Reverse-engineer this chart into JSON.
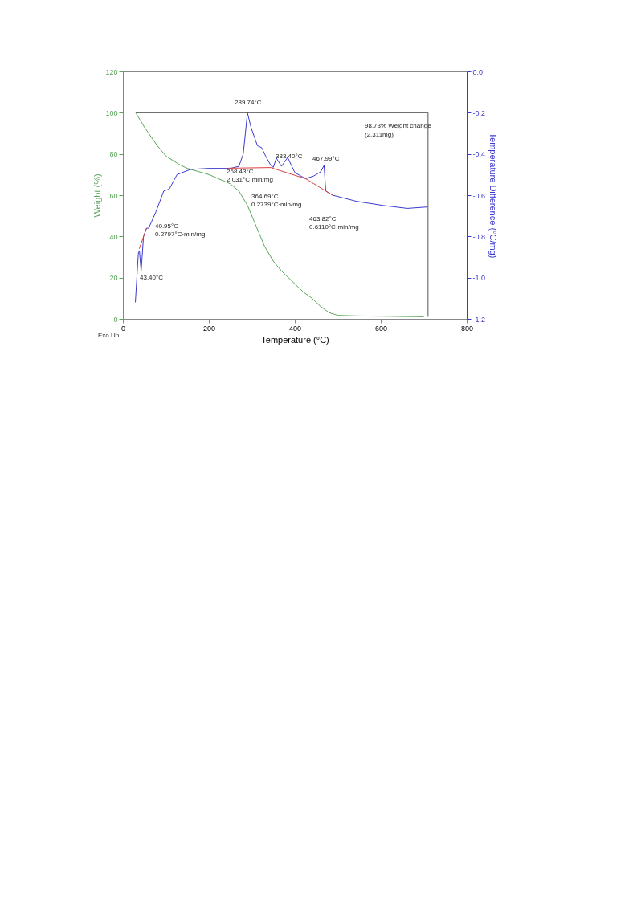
{
  "chart_data": {
    "type": "line",
    "xlabel": "Temperature (°C)",
    "ylabel": "Weight (%)",
    "y2label": "Temperature Difference (°C/mg)",
    "xlim": [
      0,
      800
    ],
    "xticks": [
      0,
      200,
      400,
      600,
      800
    ],
    "ylim": [
      0,
      120
    ],
    "yticks": [
      0,
      20,
      40,
      60,
      80,
      100,
      120
    ],
    "y2lim": [
      -1.2,
      0
    ],
    "y2ticks": [
      {
        "value": 0,
        "label": "0.0"
      },
      {
        "value": -0.2,
        "label": "-0.2"
      },
      {
        "value": -0.4,
        "label": "-0.4"
      },
      {
        "value": -0.6,
        "label": "-0.6"
      },
      {
        "value": -0.8,
        "label": "-0.8"
      },
      {
        "value": -1.0,
        "label": "-1.0"
      },
      {
        "value": -1.2,
        "label": "-1.2"
      }
    ],
    "grid": false,
    "legend": false,
    "series": [
      {
        "color": "#5aa55a",
        "x": [
          30,
          50,
          80,
          100,
          130,
          150,
          200,
          250,
          270,
          290,
          310,
          330,
          350,
          370,
          400,
          420,
          440,
          460,
          480,
          500,
          550,
          600,
          700
        ],
        "values": [
          100,
          93,
          84,
          79,
          75,
          73,
          70,
          65.5,
          62,
          55,
          45,
          35,
          28,
          23,
          17,
          13,
          10,
          6,
          3,
          1.7,
          1.4,
          1.3,
          1.0
        ]
      },
      {
        "axis": "y2",
        "color": "#3a3ad0",
        "x": [
          29,
          36,
          38.5,
          42.4,
          48,
          55,
          60,
          77,
          95,
          108,
          126,
          157,
          200,
          250,
          270,
          280,
          285,
          289.74,
          298,
          313,
          323,
          332,
          344,
          350,
          357,
          369,
          383.4,
          400,
          425,
          444,
          460,
          467.99,
          472,
          488,
          544,
          606,
          662,
          709
        ],
        "values": [
          -1.12,
          -0.88,
          -0.87,
          -0.97,
          -0.8,
          -0.76,
          -0.76,
          -0.68,
          -0.58,
          -0.57,
          -0.5,
          -0.475,
          -0.47,
          -0.47,
          -0.46,
          -0.4,
          -0.3,
          -0.2,
          -0.27,
          -0.36,
          -0.37,
          -0.41,
          -0.455,
          -0.465,
          -0.42,
          -0.46,
          -0.417,
          -0.49,
          -0.52,
          -0.507,
          -0.487,
          -0.456,
          -0.58,
          -0.6,
          -0.63,
          -0.65,
          -0.664,
          -0.657
        ]
      },
      {
        "axis": "y2",
        "color": "#e04040",
        "x": [
          38,
          55
        ],
        "values": [
          -0.86,
          -0.76
        ]
      },
      {
        "axis": "y2",
        "color": "#e04040",
        "x": [
          245,
          344,
          357,
          425,
          488
        ],
        "values": [
          -0.469,
          -0.466,
          -0.475,
          -0.52,
          -0.6
        ]
      },
      {
        "color": "#555555",
        "x": [
          30,
          710
        ],
        "values": [
          100,
          100
        ]
      },
      {
        "color": "#555555",
        "x": [
          710,
          710
        ],
        "values": [
          100,
          1
        ]
      }
    ],
    "annotations": [
      "289.74°C",
      "98.73% Weight change",
      "(2.311mg)",
      "383.40°C",
      "467.99°C",
      "268.43°C",
      "2.031°C·min/mg",
      "364.69°C",
      "0.2739°C·min/mg",
      "463.82°C",
      "0.6110°C·min/mg",
      "40.95°C",
      "0.2797°C·min/mg",
      "43.40°C",
      "Exo Up"
    ]
  }
}
